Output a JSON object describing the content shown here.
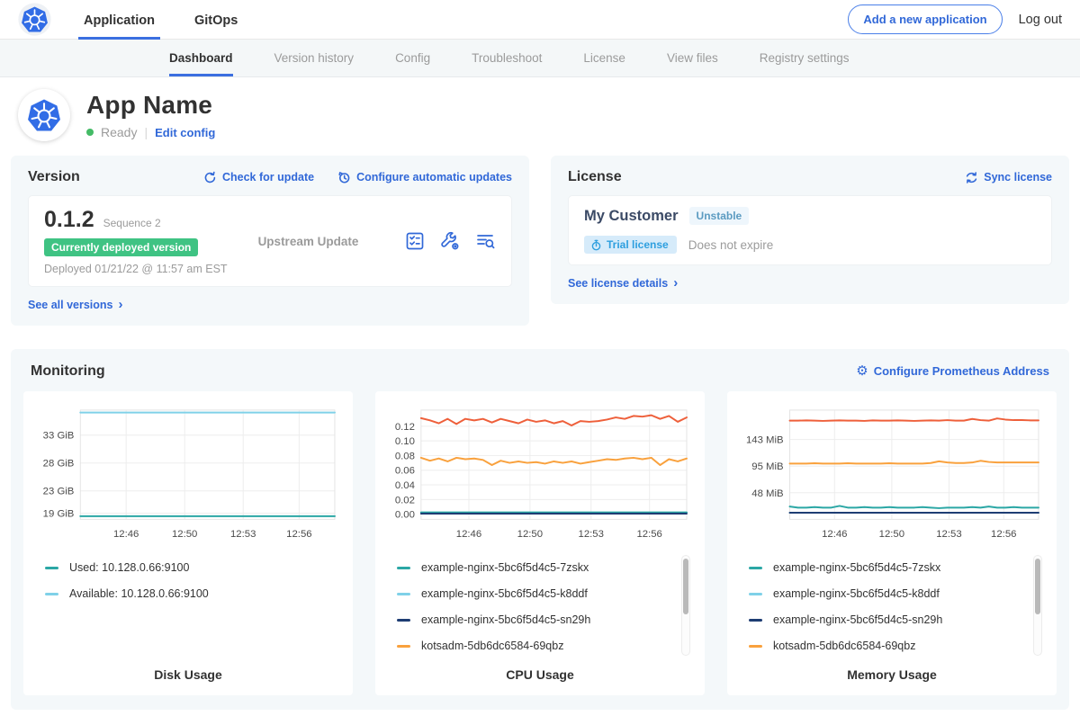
{
  "topnav": {
    "tabs": [
      {
        "label": "Application",
        "active": true
      },
      {
        "label": "GitOps",
        "active": false
      }
    ],
    "add_app_button": "Add a new application",
    "logout": "Log out"
  },
  "subnav": {
    "tabs": [
      {
        "label": "Dashboard",
        "active": true
      },
      {
        "label": "Version history",
        "active": false
      },
      {
        "label": "Config",
        "active": false
      },
      {
        "label": "Troubleshoot",
        "active": false
      },
      {
        "label": "License",
        "active": false
      },
      {
        "label": "View files",
        "active": false
      },
      {
        "label": "Registry settings",
        "active": false
      }
    ]
  },
  "app_header": {
    "title": "App Name",
    "status": "Ready",
    "edit_config": "Edit config"
  },
  "version_card": {
    "title": "Version",
    "check_for_update": "Check for update",
    "configure_auto_updates": "Configure automatic updates",
    "version_number": "0.1.2",
    "sequence": "Sequence 2",
    "deployed_badge": "Currently deployed version",
    "deployed_at": "Deployed 01/21/22 @ 11:57 am EST",
    "update_type": "Upstream Update",
    "action_icons": [
      "preflight-checks-icon",
      "config-wrench-icon",
      "view-diff-icon"
    ],
    "see_all": "See all versions",
    "chevron": "›"
  },
  "license_card": {
    "title": "License",
    "sync_license": "Sync license",
    "customer_name": "My Customer",
    "channel_badge": "Unstable",
    "trial_badge": "Trial license",
    "expiry": "Does not expire",
    "see_details": "See license details",
    "chevron": "›"
  },
  "monitoring": {
    "title": "Monitoring",
    "configure_prometheus": "Configure Prometheus Address",
    "gear_glyph": "⚙"
  },
  "colors": {
    "accent_blue": "#3168d8",
    "deployed_green": "#3fc383",
    "status_green": "#44bb66",
    "series_teal": "#2ba7a5",
    "series_lightblue": "#7fd1e8",
    "series_navy": "#1e3d73",
    "series_orange": "#f9a13d",
    "series_red": "#ee5f3a"
  },
  "chart_data": [
    {
      "type": "line",
      "title": "Disk Usage",
      "ylim": [
        17.9,
        37.5
      ],
      "yticks": [
        {
          "label": "19 GiB",
          "value": 19
        },
        {
          "label": "23 GiB",
          "value": 23
        },
        {
          "label": "28 GiB",
          "value": 28
        },
        {
          "label": "33 GiB",
          "value": 33
        }
      ],
      "xticks": [
        {
          "label": "12:46",
          "pos": 0.18
        },
        {
          "label": "12:50",
          "pos": 0.41
        },
        {
          "label": "12:53",
          "pos": 0.64
        },
        {
          "label": "12:56",
          "pos": 0.86
        }
      ],
      "series": [
        {
          "name": "Available: 10.128.0.66:9100",
          "color": "#7fd1e8",
          "values": [
            37.05,
            37.05
          ]
        },
        {
          "name": "Used: 10.128.0.66:9100",
          "color": "#2ba7a5",
          "values": [
            18.45,
            18.45
          ]
        }
      ],
      "legend": [
        {
          "label": "Used: 10.128.0.66:9100",
          "color": "#2ba7a5"
        },
        {
          "label": "Available: 10.128.0.66:9100",
          "color": "#7fd1e8"
        }
      ],
      "scrollbar": false
    },
    {
      "type": "line",
      "title": "CPU Usage",
      "ylim": [
        -0.007,
        0.142
      ],
      "yticks": [
        {
          "label": "0.00",
          "value": 0
        },
        {
          "label": "0.02",
          "value": 0.02
        },
        {
          "label": "0.04",
          "value": 0.04
        },
        {
          "label": "0.06",
          "value": 0.06
        },
        {
          "label": "0.08",
          "value": 0.08
        },
        {
          "label": "0.10",
          "value": 0.1
        },
        {
          "label": "0.12",
          "value": 0.12
        }
      ],
      "xticks": [
        {
          "label": "12:46",
          "pos": 0.18
        },
        {
          "label": "12:50",
          "pos": 0.41
        },
        {
          "label": "12:53",
          "pos": 0.64
        },
        {
          "label": "12:56",
          "pos": 0.86
        }
      ],
      "series": [
        {
          "name": "",
          "color": "#ee5f3a",
          "values": [
            0.131,
            0.128,
            0.124,
            0.13,
            0.123,
            0.13,
            0.128,
            0.13,
            0.125,
            0.13,
            0.127,
            0.124,
            0.129,
            0.126,
            0.128,
            0.124,
            0.127,
            0.121,
            0.127,
            0.126,
            0.127,
            0.129,
            0.132,
            0.13,
            0.134,
            0.133,
            0.135,
            0.13,
            0.134,
            0.126,
            0.132
          ]
        },
        {
          "name": "kotsadm-5db6dc6584-69qbz",
          "color": "#f9a13d",
          "values": [
            0.077,
            0.073,
            0.076,
            0.072,
            0.077,
            0.075,
            0.076,
            0.074,
            0.067,
            0.073,
            0.07,
            0.072,
            0.07,
            0.071,
            0.069,
            0.072,
            0.07,
            0.072,
            0.069,
            0.071,
            0.073,
            0.075,
            0.074,
            0.076,
            0.077,
            0.075,
            0.077,
            0.067,
            0.075,
            0.072,
            0.076
          ]
        },
        {
          "name": "example-nginx-5bc6f5d4c5-k8ddf",
          "color": "#7fd1e8",
          "values": [
            0.002,
            0.002
          ]
        },
        {
          "name": "example-nginx-5bc6f5d4c5-7zskx",
          "color": "#2ba7a5",
          "values": [
            0.0025,
            0.0025
          ]
        },
        {
          "name": "example-nginx-5bc6f5d4c5-sn29h",
          "color": "#1e3d73",
          "values": [
            0.0008,
            0.0008
          ]
        }
      ],
      "legend": [
        {
          "label": "example-nginx-5bc6f5d4c5-7zskx",
          "color": "#2ba7a5"
        },
        {
          "label": "example-nginx-5bc6f5d4c5-k8ddf",
          "color": "#7fd1e8"
        },
        {
          "label": "example-nginx-5bc6f5d4c5-sn29h",
          "color": "#1e3d73"
        },
        {
          "label": "kotsadm-5db6dc6584-69qbz",
          "color": "#f9a13d"
        }
      ],
      "scrollbar": true
    },
    {
      "type": "line",
      "title": "Memory Usage",
      "ylim": [
        0,
        196
      ],
      "yticks": [
        {
          "label": "48 MiB",
          "value": 47.7
        },
        {
          "label": "95 MiB",
          "value": 95.4
        },
        {
          "label": "143 MiB",
          "value": 143.1
        }
      ],
      "xticks": [
        {
          "label": "12:46",
          "pos": 0.18
        },
        {
          "label": "12:50",
          "pos": 0.41
        },
        {
          "label": "12:53",
          "pos": 0.64
        },
        {
          "label": "12:56",
          "pos": 0.86
        }
      ],
      "series": [
        {
          "name": "",
          "color": "#ee5f3a",
          "values": [
            177,
            177,
            177.5,
            177,
            176.5,
            177,
            177.5,
            177,
            177,
            176.5,
            177.5,
            177,
            177,
            177.5,
            177,
            176.5,
            177,
            177.5,
            177,
            178,
            177,
            177,
            180,
            178,
            177,
            181,
            179,
            178,
            178,
            177.5,
            177.5
          ]
        },
        {
          "name": "kotsadm-5db6dc6584-69qbz",
          "color": "#f9a13d",
          "values": [
            100,
            100,
            100,
            100.5,
            100,
            100,
            100,
            100.5,
            100,
            100,
            100,
            100,
            100.5,
            100,
            100,
            100,
            100,
            101,
            104,
            102,
            101,
            101,
            102,
            105,
            103,
            102,
            102,
            102,
            102,
            102,
            102
          ]
        },
        {
          "name": "example-nginx-5bc6f5d4c5-k8ddf",
          "color": "#7fd1e8",
          "values": [
            12,
            12
          ]
        },
        {
          "name": "example-nginx-5bc6f5d4c5-7zskx",
          "color": "#2ba7a5",
          "values": [
            23,
            21,
            21,
            22,
            21,
            21,
            24,
            21,
            21,
            22,
            21,
            21,
            22,
            21,
            21,
            21,
            22,
            21,
            20,
            21,
            21,
            21,
            22,
            21,
            23,
            21,
            21,
            22,
            21,
            21,
            21
          ]
        },
        {
          "name": "example-nginx-5bc6f5d4c5-sn29h",
          "color": "#1e3d73",
          "values": [
            12,
            12
          ]
        }
      ],
      "legend": [
        {
          "label": "example-nginx-5bc6f5d4c5-7zskx",
          "color": "#2ba7a5"
        },
        {
          "label": "example-nginx-5bc6f5d4c5-k8ddf",
          "color": "#7fd1e8"
        },
        {
          "label": "example-nginx-5bc6f5d4c5-sn29h",
          "color": "#1e3d73"
        },
        {
          "label": "kotsadm-5db6dc6584-69qbz",
          "color": "#f9a13d"
        }
      ],
      "scrollbar": true
    }
  ]
}
